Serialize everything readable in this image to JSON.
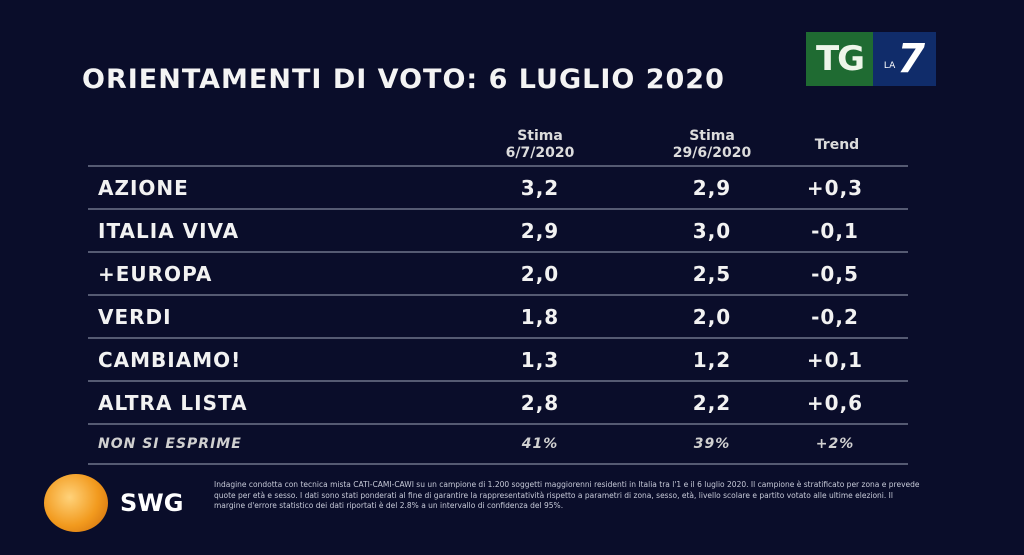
{
  "header": {
    "title": "ORIENTAMENTI DI VOTO: 6 LUGLIO 2020"
  },
  "logo": {
    "channel": "TG LA 7",
    "channel_green": "#1f6b32",
    "channel_blue": "#102c6a",
    "pollster": "SWG"
  },
  "chart_data": {
    "type": "table",
    "title": "ORIENTAMENTI DI VOTO: 6 LUGLIO 2020",
    "columns": [
      "",
      "Stima 6/7/2020",
      "Stima 29/6/2020",
      "Trend"
    ],
    "rows": [
      {
        "party": "AZIONE",
        "s1": "3,2",
        "s2": "2,9",
        "trend": "+0,3"
      },
      {
        "party": "ITALIA VIVA",
        "s1": "2,9",
        "s2": "3,0",
        "trend": "-0,1"
      },
      {
        "party": "+EUROPA",
        "s1": "2,0",
        "s2": "2,5",
        "trend": "-0,5"
      },
      {
        "party": "VERDI",
        "s1": "1,8",
        "s2": "2,0",
        "trend": "-0,2"
      },
      {
        "party": "CAMBIAMO!",
        "s1": "1,3",
        "s2": "1,2",
        "trend": "+0,1"
      },
      {
        "party": "ALTRA LISTA",
        "s1": "2,8",
        "s2": "2,2",
        "trend": "+0,6"
      },
      {
        "party": "NON SI ESPRIME",
        "s1": "41%",
        "s2": "39%",
        "trend": "+2%"
      }
    ]
  },
  "cols": {
    "c1a": "Stima",
    "c1b": "6/7/2020",
    "c2a": "Stima",
    "c2b": "29/6/2020",
    "c3": "Trend"
  },
  "footnote": "Indagine condotta con tecnica mista CATI-CAMI-CAWI su un campione di 1.200 soggetti maggiorenni residenti in Italia tra l'1 e il 6 luglio 2020. Il campione è stratificato per zona e prevede quote per età e sesso. I dati sono stati ponderati al fine di garantire la rappresentatività rispetto a parametri di zona, sesso, età, livello scolare e partito votato alle ultime elezioni. Il margine d'errore statistico dei dati riportati è del 2.8% a un intervallo di confidenza del 95%."
}
